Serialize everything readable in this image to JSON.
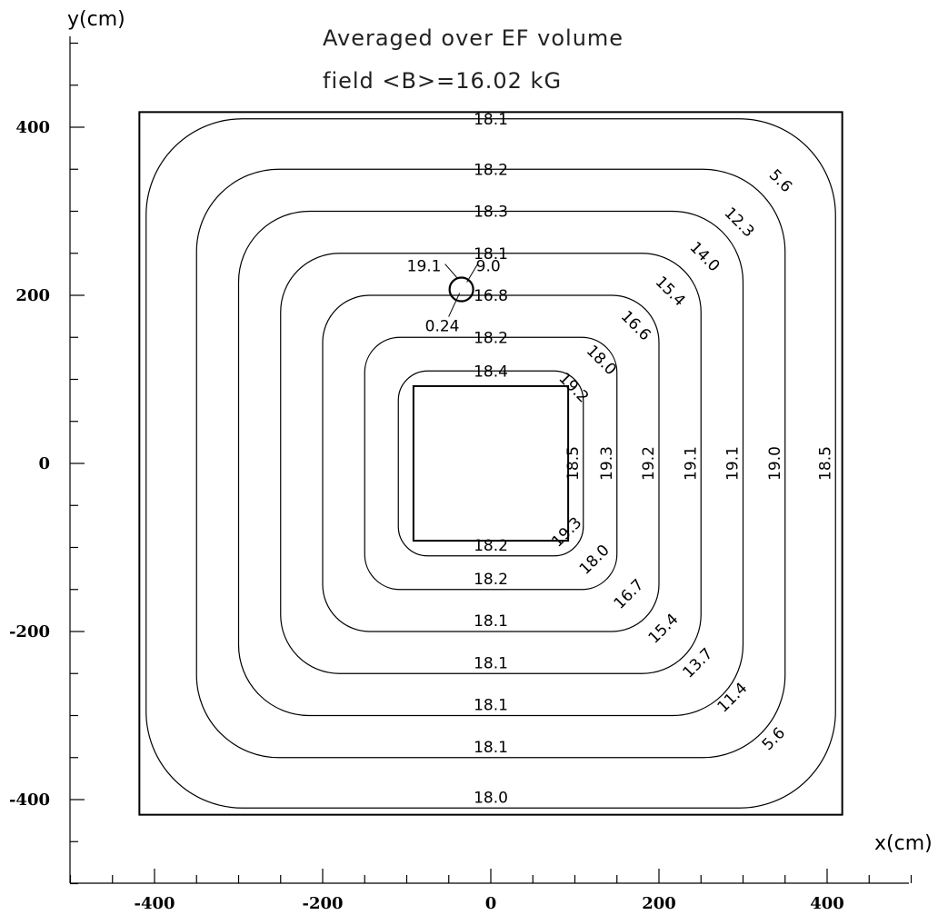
{
  "chart_data": {
    "type": "contour",
    "title_lines": [
      "Averaged over EF volume",
      "field <B>=16.02 kG"
    ],
    "xlabel": "x(cm)",
    "ylabel": "y(cm)",
    "xlim": [
      -500,
      500
    ],
    "ylim": [
      -500,
      500
    ],
    "x_ticks": [
      -400,
      -200,
      0,
      200,
      400
    ],
    "y_ticks": [
      400,
      200,
      0,
      -200,
      -400
    ],
    "outer_boundary": {
      "half_width": 418
    },
    "inner_boundary": {
      "half_width": 92
    },
    "contours": [
      {
        "hw": 410,
        "value_top": "18.1",
        "value_bottom": "18.0",
        "value_right": "18.5",
        "value_corner_tr": "5.6",
        "value_corner_br": "5.6"
      },
      {
        "hw": 350,
        "value_top": "18.2",
        "value_bottom": "18.1",
        "value_right": "19.0",
        "value_corner_tr": "12.3",
        "value_corner_br": "11.4"
      },
      {
        "hw": 300,
        "value_top": "18.3",
        "value_bottom": "18.1",
        "value_right": "19.1",
        "value_corner_tr": "14.0",
        "value_corner_br": "13.7"
      },
      {
        "hw": 250,
        "value_top": "18.1",
        "value_bottom": "18.1",
        "value_right": "19.1",
        "value_corner_tr": "15.4",
        "value_corner_br": "15.4"
      },
      {
        "hw": 200,
        "value_top": "16.8",
        "value_bottom": "18.1",
        "value_right": "19.2",
        "value_corner_tr": "16.6",
        "value_corner_br": "16.7"
      },
      {
        "hw": 150,
        "value_top": "18.2",
        "value_bottom": "18.2",
        "value_right": "19.3",
        "value_corner_tr": "18.0",
        "value_corner_br": "18.0"
      },
      {
        "hw": 110,
        "value_top": "18.4",
        "value_bottom": "18.2",
        "value_right": "18.5",
        "value_corner_tr": "19.2",
        "value_corner_br": "19.3"
      }
    ],
    "probe_circle": {
      "x": -35,
      "y": 207
    },
    "probe_labels": [
      "19.1",
      "9.0",
      "0.24"
    ]
  }
}
